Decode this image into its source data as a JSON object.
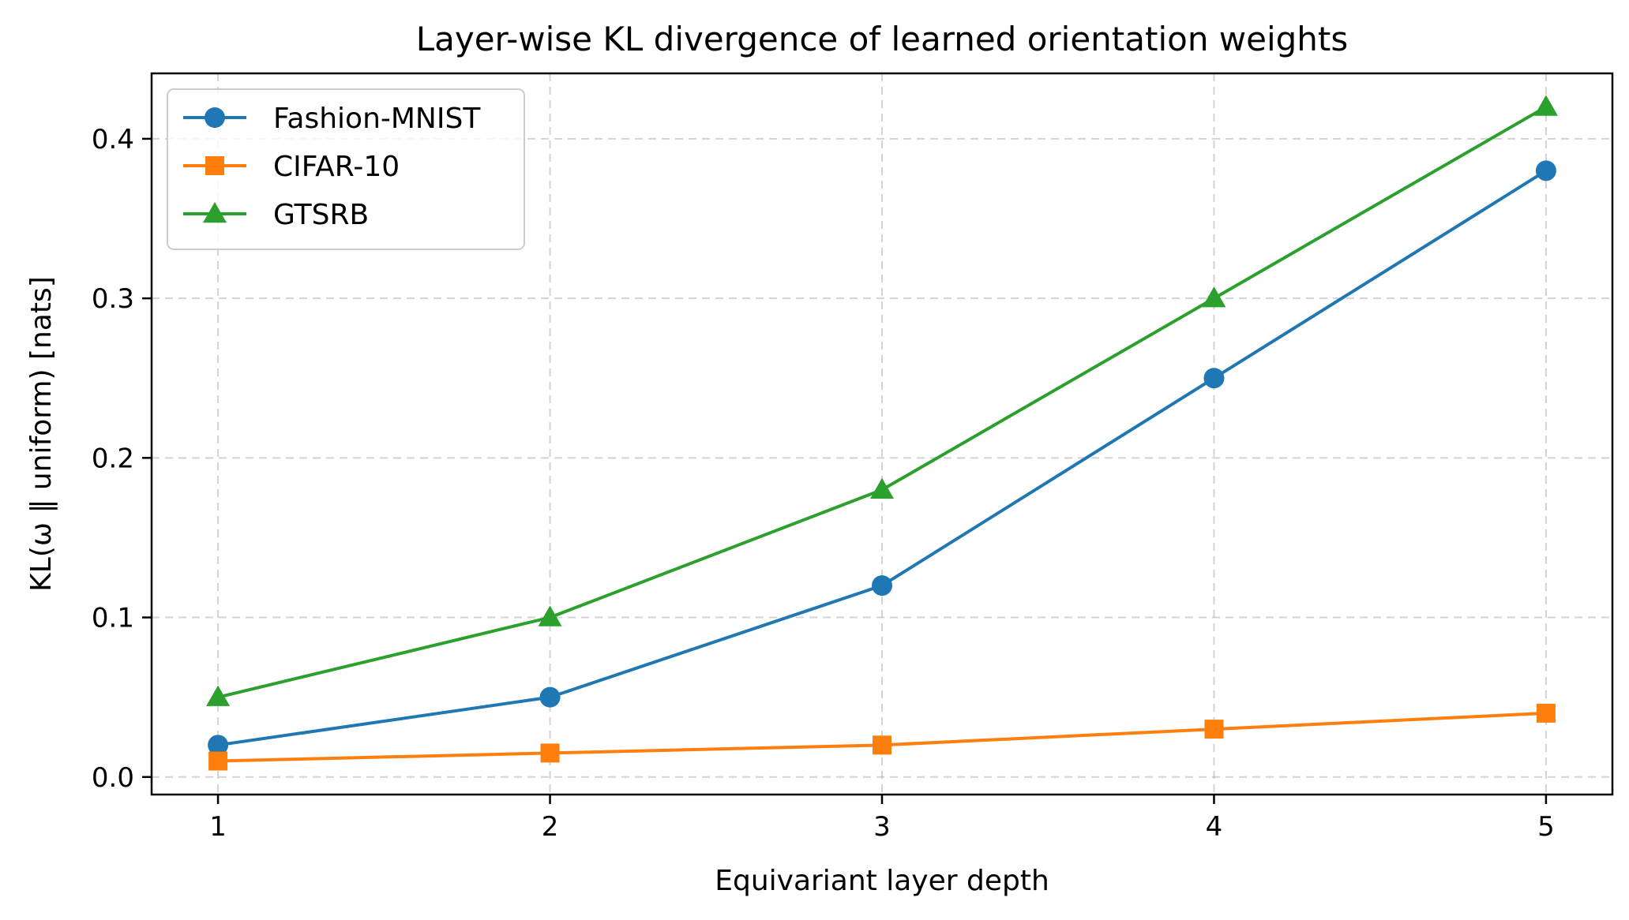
{
  "chart_data": {
    "type": "line",
    "title": "Layer-wise KL divergence of learned orientation weights",
    "xlabel": "Equivariant layer depth",
    "ylabel": "KL(ω ‖ uniform)  [nats]",
    "x": [
      1,
      2,
      3,
      4,
      5
    ],
    "x_ticks": [
      "1",
      "2",
      "3",
      "4",
      "5"
    ],
    "y_ticks": [
      "0.0",
      "0.1",
      "0.2",
      "0.3",
      "0.4"
    ],
    "y_tick_values": [
      0.0,
      0.1,
      0.2,
      0.3,
      0.4
    ],
    "xlim": [
      0.8,
      5.2
    ],
    "ylim": [
      -0.011,
      0.441
    ],
    "grid": true,
    "legend_position": "upper-left",
    "series": [
      {
        "name": "Fashion-MNIST",
        "values": [
          0.02,
          0.05,
          0.12,
          0.25,
          0.38
        ],
        "color": "#1f77b4",
        "marker": "circle"
      },
      {
        "name": "CIFAR-10",
        "values": [
          0.01,
          0.015,
          0.02,
          0.03,
          0.04
        ],
        "color": "#ff7f0e",
        "marker": "square"
      },
      {
        "name": "GTSRB",
        "values": [
          0.05,
          0.1,
          0.18,
          0.3,
          0.42
        ],
        "color": "#2ca02c",
        "marker": "triangle"
      }
    ]
  }
}
